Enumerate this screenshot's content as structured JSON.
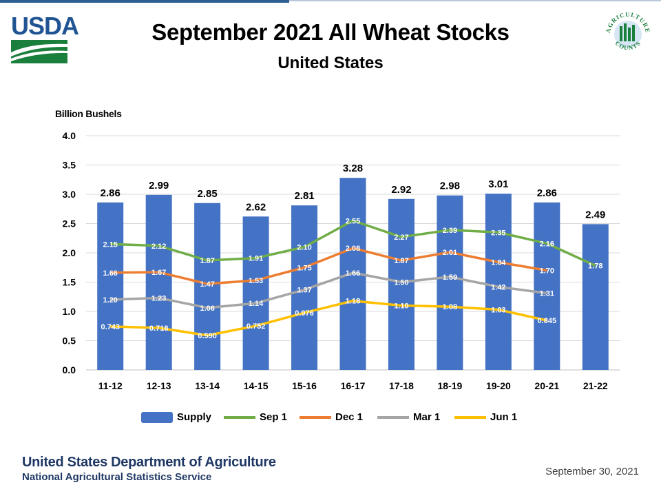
{
  "header": {
    "usda_logo_text": "USDA",
    "ag_logo_text": "AGRICULTURE COUNTS",
    "title": "September 2021 All Wheat Stocks",
    "subtitle": "United States"
  },
  "footer": {
    "org": "United States Department of Agriculture",
    "agency": "National Agricultural Statistics Service",
    "date": "September 30, 2021"
  },
  "colors": {
    "supply": "#4472c4",
    "sep1": "#70ad47",
    "dec1": "#ed7d31",
    "mar1": "#a5a5a5",
    "jun1": "#ffc000",
    "logo_blue": "#205493",
    "logo_green": "#1a7f3c"
  },
  "chart_data": {
    "type": "bar",
    "title": "September 2021 All Wheat Stocks",
    "subtitle": "United States",
    "ylabel": "Billion Bushels",
    "xlabel": "",
    "ylim": [
      0,
      4.0
    ],
    "yticks": [
      "0.0",
      "0.5",
      "1.0",
      "1.5",
      "2.0",
      "2.5",
      "3.0",
      "3.5",
      "4.0"
    ],
    "grid": true,
    "legend_position": "bottom",
    "categories": [
      "11-12",
      "12-13",
      "13-14",
      "14-15",
      "15-16",
      "16-17",
      "17-18",
      "18-19",
      "19-20",
      "20-21",
      "21-22"
    ],
    "bars": {
      "name": "Supply",
      "values": [
        2.86,
        2.99,
        2.85,
        2.62,
        2.81,
        3.28,
        2.92,
        2.98,
        3.01,
        2.86,
        2.49
      ],
      "labels": [
        "2.86",
        "2.99",
        "2.85",
        "2.62",
        "2.81",
        "3.28",
        "2.92",
        "2.98",
        "3.01",
        "2.86",
        "2.49"
      ]
    },
    "series": [
      {
        "name": "Sep 1",
        "type": "line",
        "color_key": "sep1",
        "values": [
          2.15,
          2.12,
          1.87,
          1.91,
          2.1,
          2.55,
          2.27,
          2.39,
          2.35,
          2.16,
          1.78
        ],
        "labels": [
          "2.15",
          "2.12",
          "1.87",
          "1.91",
          "2.10",
          "2.55",
          "2.27",
          "2.39",
          "2.35",
          "2.16",
          "1.78"
        ]
      },
      {
        "name": "Dec 1",
        "type": "line",
        "color_key": "dec1",
        "values": [
          1.66,
          1.67,
          1.47,
          1.53,
          1.75,
          2.08,
          1.87,
          2.01,
          1.84,
          1.7,
          null
        ],
        "labels": [
          "1.66",
          "1.67",
          "1.47",
          "1.53",
          "1.75",
          "2.08",
          "1.87",
          "2.01",
          "1.84",
          "1.70",
          ""
        ]
      },
      {
        "name": "Mar 1",
        "type": "line",
        "color_key": "mar1",
        "values": [
          1.2,
          1.23,
          1.06,
          1.14,
          1.37,
          1.66,
          1.5,
          1.59,
          1.42,
          1.31,
          null
        ],
        "labels": [
          "1.20",
          "1.23",
          "1.06",
          "1.14",
          "1.37",
          "1.66",
          "1.50",
          "1.59",
          "1.42",
          "1.31",
          ""
        ]
      },
      {
        "name": "Jun 1",
        "type": "line",
        "color_key": "jun1",
        "values": [
          0.743,
          0.718,
          0.59,
          0.752,
          0.976,
          1.18,
          1.1,
          1.08,
          1.03,
          0.845,
          null
        ],
        "labels": [
          "0.743",
          "0.718",
          "0.590",
          "0.752",
          "0.976",
          "1.18",
          "1.10",
          "1.08",
          "1.03",
          "0.845",
          ""
        ]
      }
    ]
  }
}
